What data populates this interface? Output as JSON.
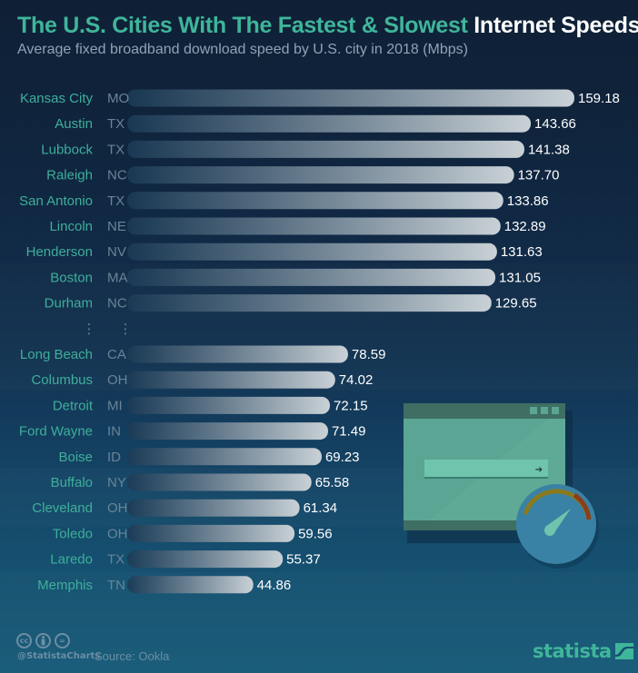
{
  "header": {
    "title_accent": "The U.S. Cities With The Fastest & Slowest",
    "title_rest": "Internet Speeds",
    "subtitle": "Average fixed broadband download speed by U.S. city in 2018 (Mbps)"
  },
  "colors": {
    "accent": "#3fb59a",
    "background_top": "#0f2036",
    "background_bottom": "#165a78",
    "bar_start": "#1b3a55",
    "bar_end": "#c9d1d6",
    "city_label": "#3fae9a",
    "state_label": "#6a8497",
    "value_label": "#ffffff"
  },
  "chart_data": {
    "type": "bar",
    "orientation": "horizontal",
    "title": "The U.S. Cities With The Fastest & Slowest Internet Speeds",
    "subtitle": "Average fixed broadband download speed by U.S. city in 2018 (Mbps)",
    "xlabel": "",
    "ylabel": "",
    "unit": "Mbps",
    "xlim": [
      0,
      160
    ],
    "grid": false,
    "legend": "none",
    "groups": [
      {
        "name": "fastest",
        "categories": [
          "Kansas City",
          "Austin",
          "Lubbock",
          "Raleigh",
          "San Antonio",
          "Lincoln",
          "Henderson",
          "Boston",
          "Durham"
        ],
        "states": [
          "MO",
          "TX",
          "TX",
          "NC",
          "TX",
          "NE",
          "NV",
          "MA",
          "NC"
        ],
        "values": [
          159.18,
          143.66,
          141.38,
          137.7,
          133.86,
          132.89,
          131.63,
          131.05,
          129.65
        ],
        "labels": [
          "159.18",
          "143.66",
          "141.38",
          "137.70",
          "133.86",
          "132.89",
          "131.63",
          "131.05",
          "129.65"
        ]
      },
      {
        "name": "slowest",
        "categories": [
          "Long Beach",
          "Columbus",
          "Detroit",
          "Ford Wayne",
          "Boise",
          "Buffalo",
          "Cleveland",
          "Toledo",
          "Laredo",
          "Memphis"
        ],
        "states": [
          "CA",
          "OH",
          "MI",
          "IN",
          "ID",
          "NY",
          "OH",
          "OH",
          "TX",
          "TN"
        ],
        "values": [
          78.59,
          74.02,
          72.15,
          71.49,
          69.23,
          65.58,
          61.34,
          59.56,
          55.37,
          44.86
        ],
        "labels": [
          "78.59",
          "74.02",
          "72.15",
          "71.49",
          "69.23",
          "65.58",
          "61.34",
          "59.56",
          "55.37",
          "44.86"
        ]
      }
    ],
    "separator": "⋮"
  },
  "illustration": {
    "description": "browser window with address bar and speedometer",
    "arrow_glyph": "➔"
  },
  "footer": {
    "cc_icons": [
      "cc",
      "by",
      "="
    ],
    "handle": "@StatistaCharts",
    "source": "Source: Ookla",
    "brand": "statista"
  }
}
